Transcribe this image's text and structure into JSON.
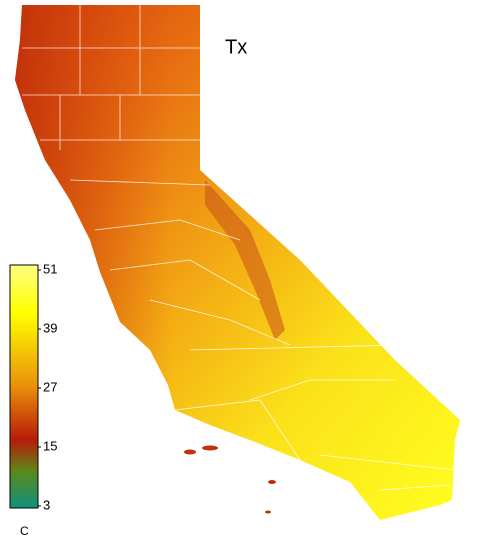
{
  "title": "Tx",
  "colorbar": {
    "ticks": [
      51,
      39,
      27,
      15,
      3
    ],
    "unit": "C"
  }
}
